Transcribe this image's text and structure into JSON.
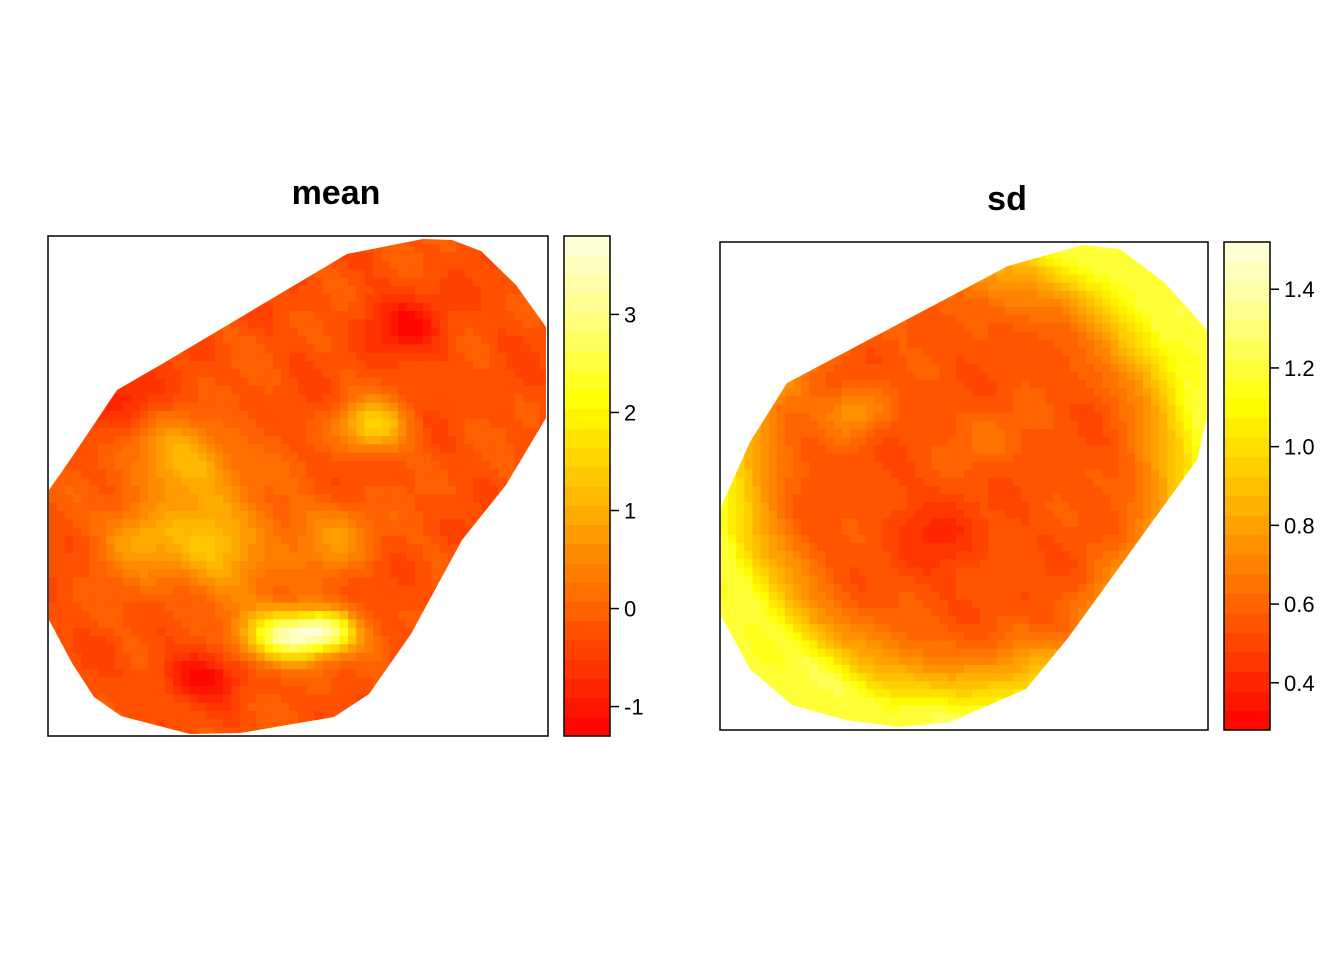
{
  "chart_data": [
    {
      "type": "heatmap",
      "title": "mean",
      "legend_placement": "right",
      "color_ramp": [
        "#FF0000",
        "#FF4000",
        "#FF8000",
        "#FFC000",
        "#FFFF00",
        "#FFFF80",
        "#FFFFE0"
      ],
      "value_range": [
        -1.3,
        3.8
      ],
      "legend_ticks": [
        -1,
        0,
        1,
        2,
        3
      ],
      "legend_tick_labels": [
        "-1",
        "0",
        "1",
        "2",
        "3"
      ],
      "legend_breaks": 26,
      "field": {
        "base": -0.2,
        "hotspots": [
          {
            "x": 0.48,
            "y": 0.2,
            "amp": 3.4,
            "sx": 0.08,
            "sy": 0.05
          },
          {
            "x": 0.56,
            "y": 0.21,
            "amp": 2.4,
            "sx": 0.06,
            "sy": 0.04
          },
          {
            "x": 0.34,
            "y": 0.38,
            "amp": 1.4,
            "sx": 0.12,
            "sy": 0.1
          },
          {
            "x": 0.28,
            "y": 0.55,
            "amp": 1.3,
            "sx": 0.1,
            "sy": 0.08
          },
          {
            "x": 0.65,
            "y": 0.62,
            "amp": 1.6,
            "sx": 0.07,
            "sy": 0.05
          },
          {
            "x": 0.18,
            "y": 0.4,
            "amp": 1.0,
            "sx": 0.07,
            "sy": 0.07
          },
          {
            "x": 0.58,
            "y": 0.4,
            "amp": 0.8,
            "sx": 0.08,
            "sy": 0.07
          },
          {
            "x": 0.3,
            "y": 0.12,
            "amp": -0.9,
            "sx": 0.08,
            "sy": 0.05
          },
          {
            "x": 0.72,
            "y": 0.82,
            "amp": -0.8,
            "sx": 0.09,
            "sy": 0.06
          },
          {
            "x": 0.17,
            "y": 0.68,
            "amp": -0.6,
            "sx": 0.07,
            "sy": 0.05
          }
        ]
      }
    },
    {
      "type": "heatmap",
      "title": "sd",
      "legend_placement": "right",
      "color_ramp": [
        "#FF0000",
        "#FF4000",
        "#FF8000",
        "#FFC000",
        "#FFFF00",
        "#FFFF80",
        "#FFFFE0"
      ],
      "value_range": [
        0.28,
        1.52
      ],
      "legend_ticks": [
        0.4,
        0.6,
        0.8,
        1.0,
        1.2,
        1.4
      ],
      "legend_tick_labels": [
        "0.4",
        "0.6",
        "0.8",
        "1.0",
        "1.2",
        "1.4"
      ],
      "legend_breaks": 25,
      "field": {
        "interior": 0.55,
        "edge": 1.2,
        "hotspots": [
          {
            "x": 0.28,
            "y": 0.35,
            "amp": 0.22,
            "sx": 0.06,
            "sy": 0.05
          },
          {
            "x": 0.55,
            "y": 0.4,
            "amp": 0.1,
            "sx": 0.07,
            "sy": 0.06
          },
          {
            "x": 0.45,
            "y": 0.6,
            "amp": -0.12,
            "sx": 0.1,
            "sy": 0.08
          },
          {
            "x": 0.7,
            "y": 0.8,
            "amp": -0.1,
            "sx": 0.06,
            "sy": 0.05
          }
        ]
      }
    }
  ]
}
